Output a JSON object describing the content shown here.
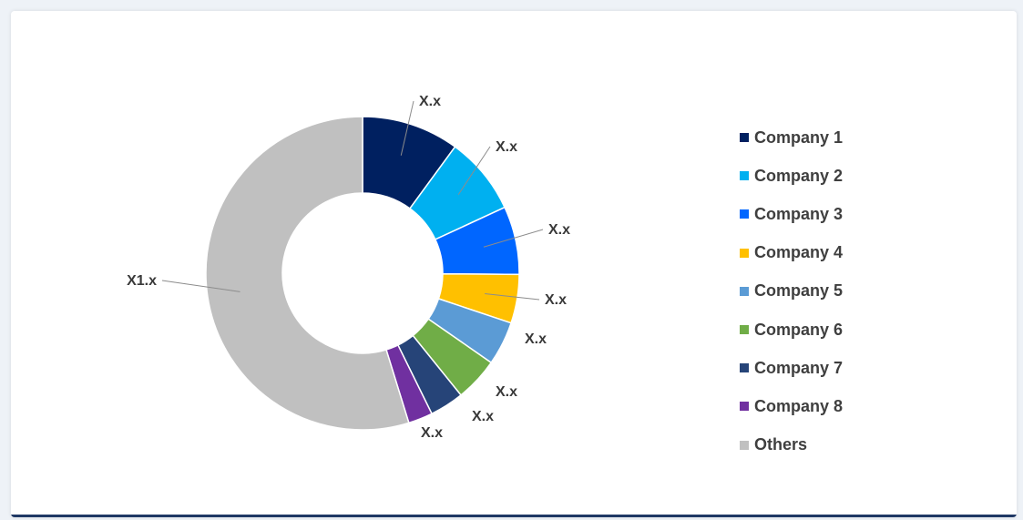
{
  "chart_data": {
    "type": "donut",
    "categories": [
      "Company 1",
      "Company 2",
      "Company 3",
      "Company 4",
      "Company 5",
      "Company 6",
      "Company 7",
      "Company 8",
      "Others"
    ],
    "values": [
      10,
      8,
      7,
      5,
      4.5,
      4.5,
      3.5,
      2.5,
      54.5
    ],
    "data_labels": [
      "X.x",
      "X.x",
      "X.x",
      "X.x",
      "X.x",
      "X.x",
      "X.x",
      "X.x",
      "X1.x"
    ],
    "colors": [
      "#002060",
      "#00b0f0",
      "#0066ff",
      "#ffc000",
      "#5b9bd5",
      "#70ad47",
      "#264478",
      "#7030a0",
      "#c0c0c0"
    ],
    "legend_position": "right"
  }
}
